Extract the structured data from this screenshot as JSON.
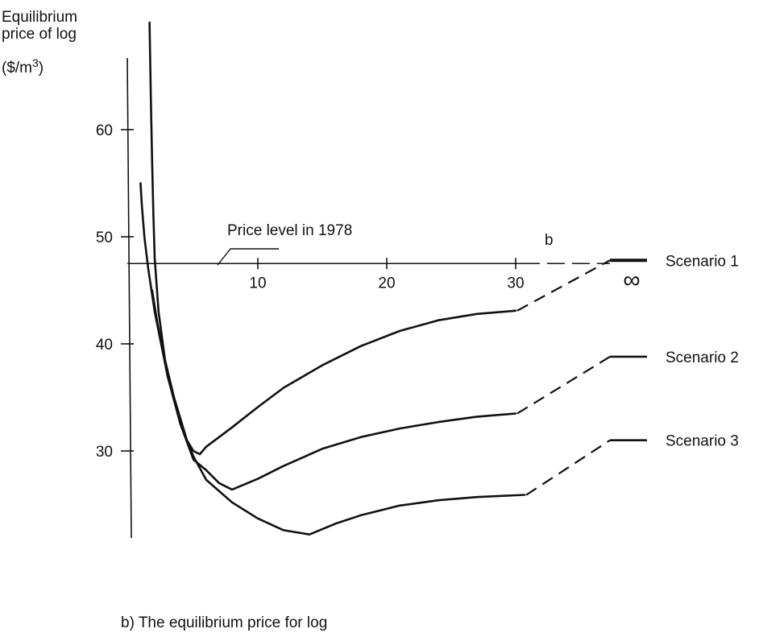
{
  "chart_data": {
    "type": "line",
    "ylabel_lines": [
      "Equilibrium",
      "price of log",
      "($/m3)"
    ],
    "ylabel_sup": "3",
    "xlabel": "b",
    "caption": "b) The equilibrium price for log",
    "annotation": "Price level in 1978",
    "reference_price": 47.5,
    "x_ticks": [
      10,
      20,
      30
    ],
    "x_tick_infinity": "∞",
    "y_ticks": [
      30,
      40,
      50,
      60
    ],
    "xlim": [
      0,
      36
    ],
    "ylim": [
      22,
      66
    ],
    "series": [
      {
        "name": "Scenario 1",
        "x": [
          1.6,
          1.7,
          1.8,
          1.9,
          2.0,
          2.3,
          2.8,
          3.5,
          4.5,
          5.0,
          5.5,
          6.0,
          8,
          10,
          12,
          15,
          18,
          21,
          24,
          27,
          30
        ],
        "y": [
          70,
          63,
          57,
          52,
          48,
          43,
          38.5,
          35,
          31,
          30,
          29.7,
          30.4,
          32.2,
          34.1,
          35.9,
          38.0,
          39.8,
          41.2,
          42.2,
          42.8,
          43.1
        ],
        "infinity_value": 47.8
      },
      {
        "name": "Scenario 2",
        "x": [
          1.8,
          2.2,
          3.0,
          4.0,
          5.0,
          6.0,
          7.0,
          8.0,
          10,
          12,
          15,
          18,
          21,
          24,
          27,
          30
        ],
        "y": [
          45,
          42,
          37,
          32.5,
          29.2,
          28.2,
          27.0,
          26.4,
          27.4,
          28.6,
          30.2,
          31.3,
          32.1,
          32.7,
          33.2,
          33.5
        ],
        "infinity_value": 38.8
      },
      {
        "name": "Scenario 3",
        "x": [
          0.9,
          1.0,
          1.2,
          1.5,
          2.0,
          2.5,
          3.0,
          4.0,
          5.0,
          6.0,
          8,
          10,
          12,
          14,
          16,
          18,
          21,
          24,
          27,
          30.7
        ],
        "y": [
          55,
          53,
          50,
          47,
          43,
          40,
          37,
          32.5,
          29.5,
          27.3,
          25.2,
          23.7,
          22.6,
          22.2,
          23.2,
          24.0,
          24.9,
          25.4,
          25.7,
          25.9
        ],
        "infinity_value": 31
      }
    ]
  }
}
